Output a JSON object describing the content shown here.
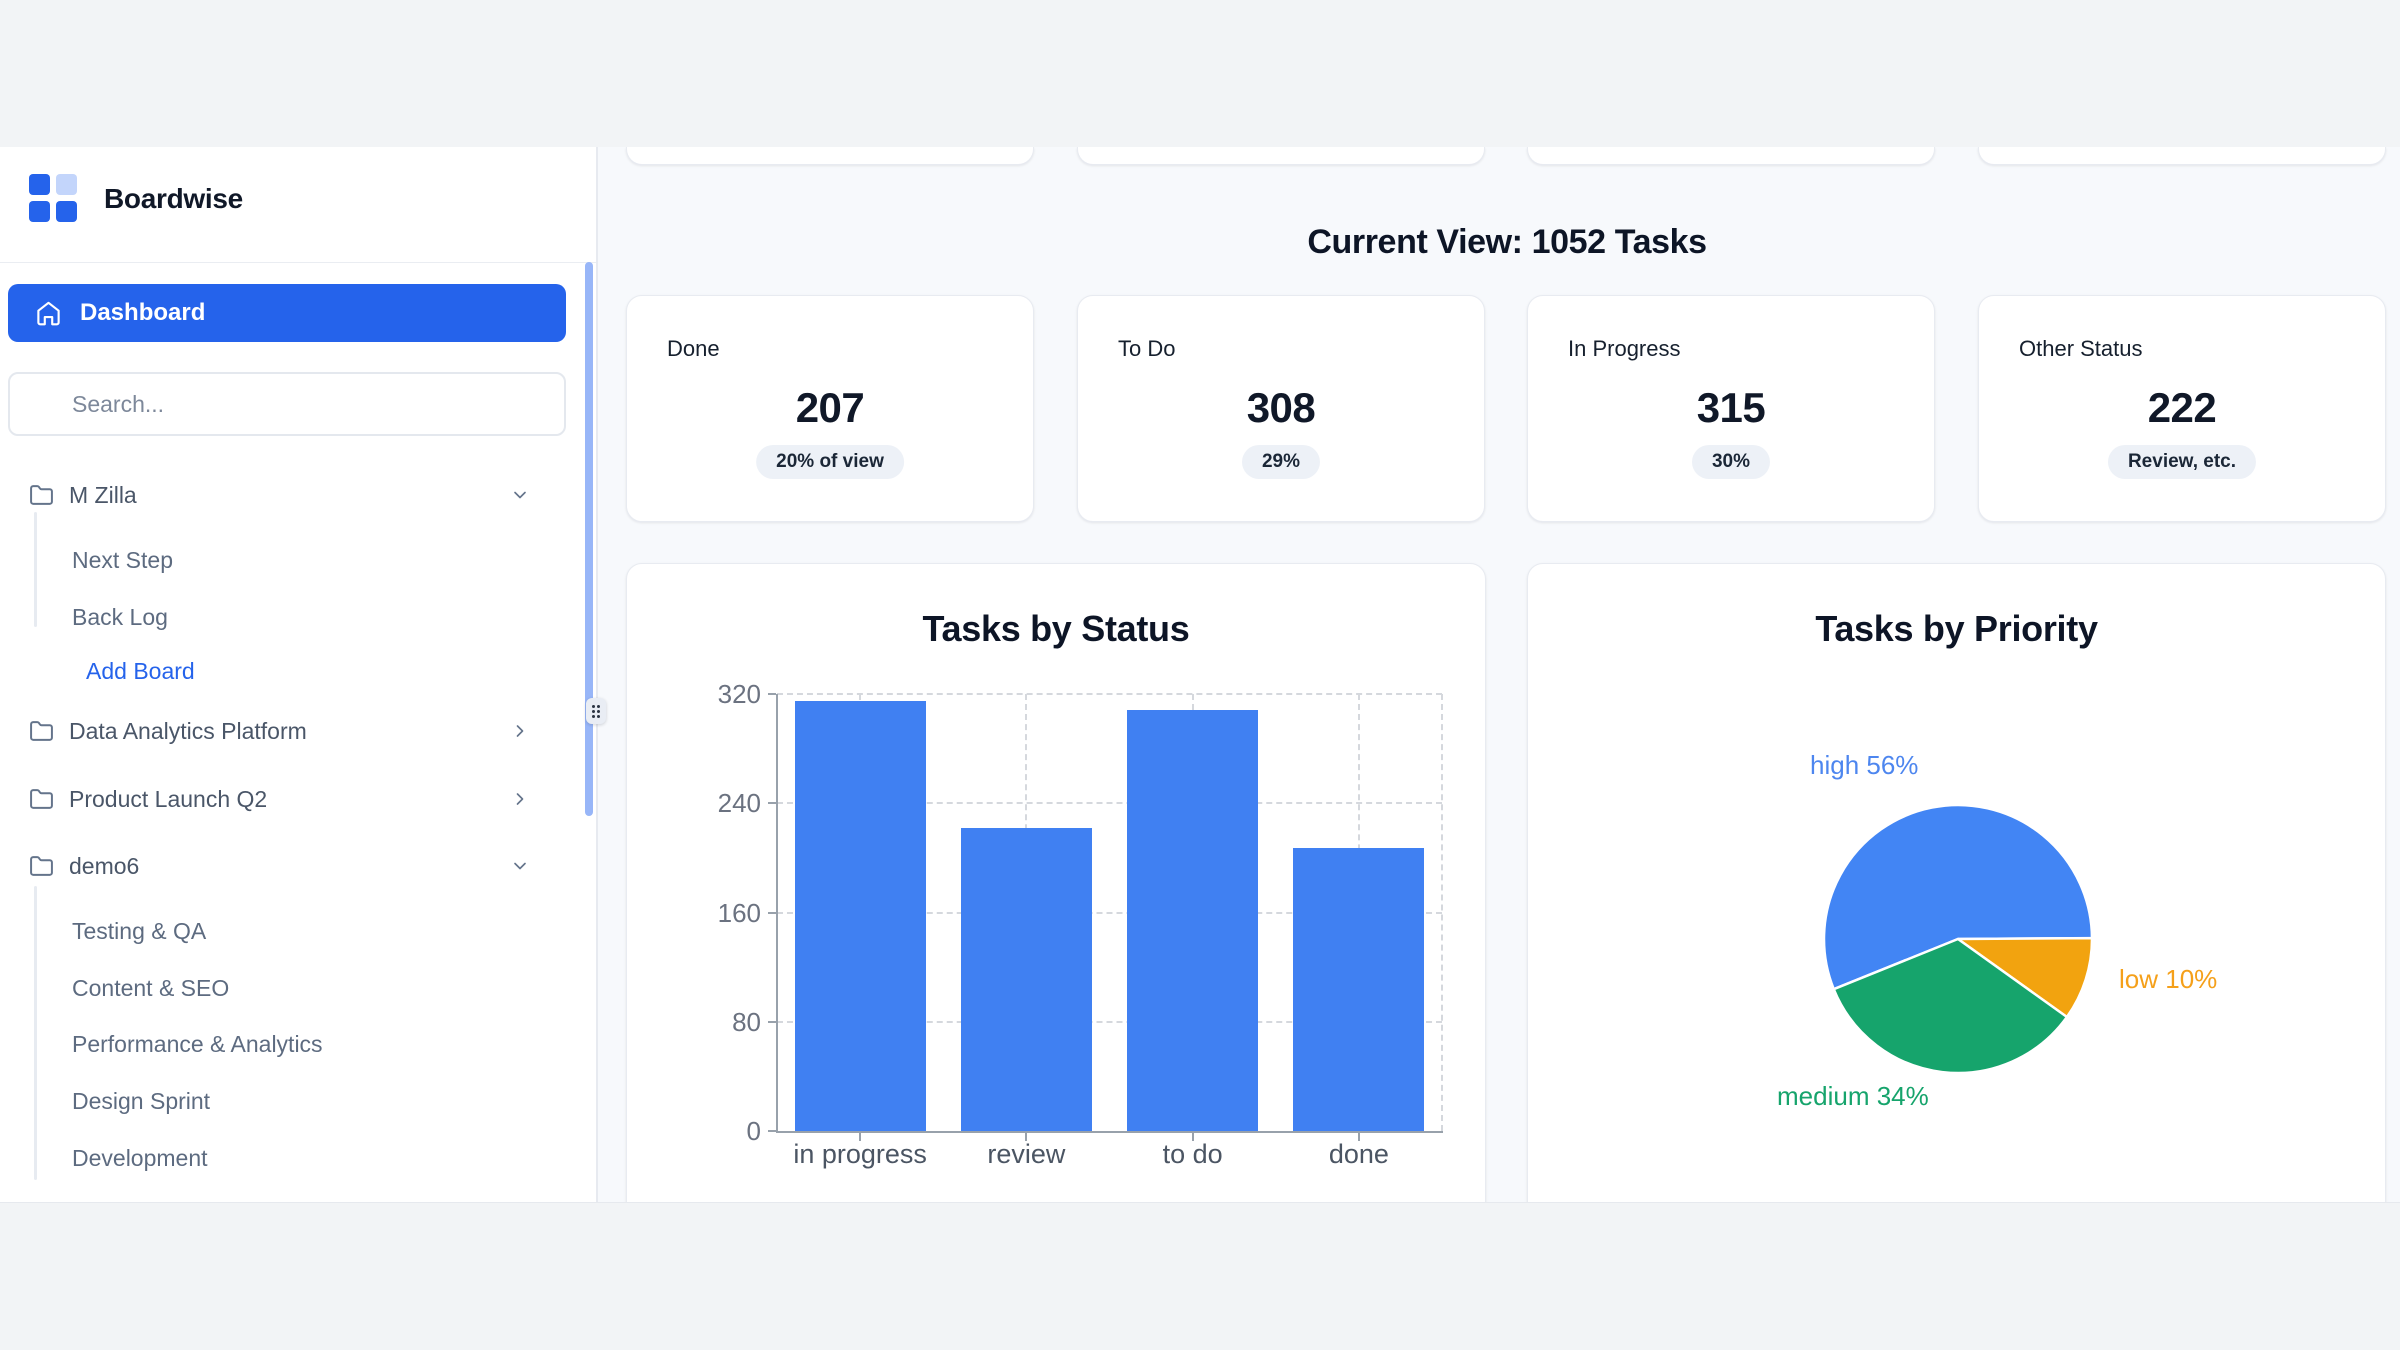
{
  "brand": {
    "name": "Boardwise"
  },
  "sidebar": {
    "dashboard_label": "Dashboard",
    "search_placeholder": "Search...",
    "tree": [
      {
        "label": "M Zilla",
        "state": "expanded",
        "children": [
          "Next Step",
          "Back Log"
        ],
        "action": "Add Board"
      },
      {
        "label": "Data Analytics Platform",
        "state": "collapsed"
      },
      {
        "label": "Product Launch Q2",
        "state": "collapsed"
      },
      {
        "label": "demo6",
        "state": "expanded",
        "children": [
          "Testing & QA",
          "Content & SEO",
          "Performance & Analytics",
          "Design Sprint",
          "Development"
        ]
      }
    ]
  },
  "header": {
    "title": "Current View: 1052 Tasks"
  },
  "stat_cards": [
    {
      "label": "Done",
      "value": "207",
      "badge": "20% of view"
    },
    {
      "label": "To Do",
      "value": "308",
      "badge": "29%"
    },
    {
      "label": "In Progress",
      "value": "315",
      "badge": "30%"
    },
    {
      "label": "Other Status",
      "value": "222",
      "badge": "Review, etc."
    }
  ],
  "colors": {
    "accent": "#2563eb",
    "bar_blue": "#4080f2",
    "pie_blue": "#4285f4",
    "pie_green": "#16a46c",
    "pie_orange": "#f2a30f",
    "label_blue": "#4d86ef",
    "label_orange": "#f5a01a",
    "label_green": "#16a46c"
  },
  "chart_data": [
    {
      "type": "bar",
      "title": "Tasks by Status",
      "categories": [
        "in progress",
        "review",
        "to do",
        "done"
      ],
      "values": [
        315,
        222,
        308,
        207
      ],
      "xlabel": "",
      "ylabel": "",
      "ylim": [
        0,
        320
      ],
      "yticks": [
        0,
        80,
        160,
        240,
        320
      ],
      "grid": "dashed-both",
      "legend": "none",
      "bar_color": "#4080f2"
    },
    {
      "type": "pie",
      "title": "Tasks by Priority",
      "slices": [
        {
          "label": "high",
          "pct": 56,
          "color": "#4285f4"
        },
        {
          "label": "low",
          "pct": 10,
          "color": "#f2a30f"
        },
        {
          "label": "medium",
          "pct": 34,
          "color": "#16a46c"
        }
      ],
      "start_angle_deg": 248,
      "legend": "none",
      "labels": [
        {
          "text": "high 56%",
          "color": "#4d86ef"
        },
        {
          "text": "low 10%",
          "color": "#f5a01a"
        },
        {
          "text": "medium 34%",
          "color": "#16a46c"
        }
      ]
    }
  ]
}
